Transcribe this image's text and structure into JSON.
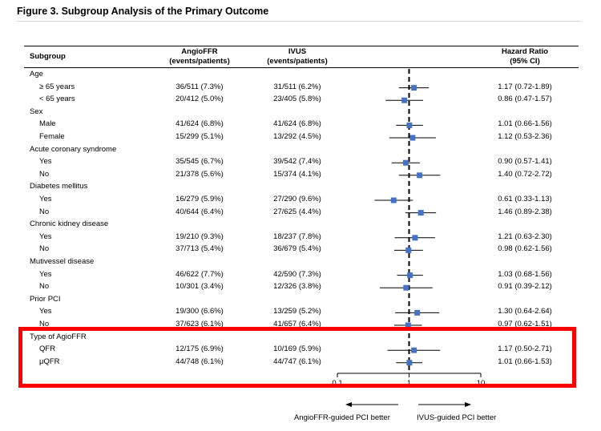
{
  "title": "Figure 3. Subgroup Analysis of the Primary Outcome",
  "headers": {
    "subgroup": "Subgroup",
    "angio_line1": "AngioFFR",
    "angio_line2": "(events/patients)",
    "ivus_line1": "IVUS",
    "ivus_line2": "(events/patients)",
    "hr_line1": "Hazard Ratio",
    "hr_line2": "(95% CI)"
  },
  "rows": [
    {
      "label": "Age",
      "kind": "group",
      "angio": "",
      "ivus": "",
      "ci": ""
    },
    {
      "label": "≥ 65 years",
      "kind": "sub",
      "angio": "36/511 (7.3%)",
      "ivus": "31/511 (6.2%)",
      "ci": "1.17 (0.72-1.89)"
    },
    {
      "label": "< 65 years",
      "kind": "sub",
      "angio": "20/412 (5.0%)",
      "ivus": "23/405 (5.8%)",
      "ci": "0.86 (0.47-1.57)"
    },
    {
      "label": "Sex",
      "kind": "group",
      "angio": "",
      "ivus": "",
      "ci": ""
    },
    {
      "label": "Male",
      "kind": "sub",
      "angio": "41/624 (6.8%)",
      "ivus": "41/624 (6.8%)",
      "ci": "1.01 (0.66-1.56)"
    },
    {
      "label": "Female",
      "kind": "sub",
      "angio": "15/299 (5.1%)",
      "ivus": "13/292 (4.5%)",
      "ci": "1.12 (0.53-2.36)"
    },
    {
      "label": "Acute coronary syndrome",
      "kind": "group",
      "angio": "",
      "ivus": "",
      "ci": ""
    },
    {
      "label": "Yes",
      "kind": "sub",
      "angio": "35/545 (6.7%)",
      "ivus": "39/542 (7.4%)",
      "ci": "0.90 (0.57-1.41)"
    },
    {
      "label": "No",
      "kind": "sub",
      "angio": "21/378 (5.6%)",
      "ivus": "15/374 (4.1%)",
      "ci": "1.40 (0.72-2.72)"
    },
    {
      "label": "Diabetes mellitus",
      "kind": "group",
      "angio": "",
      "ivus": "",
      "ci": ""
    },
    {
      "label": "Yes",
      "kind": "sub",
      "angio": "16/279 (5.9%)",
      "ivus": "27/290 (9.6%)",
      "ci": "0.61 (0.33-1.13)"
    },
    {
      "label": "No",
      "kind": "sub",
      "angio": "40/644 (6.4%)",
      "ivus": "27/625 (4.4%)",
      "ci": "1.46 (0.89-2.38)"
    },
    {
      "label": "Chronic kidney disease",
      "kind": "group",
      "angio": "",
      "ivus": "",
      "ci": ""
    },
    {
      "label": "Yes",
      "kind": "sub",
      "angio": "19/210 (9.3%)",
      "ivus": "18/237 (7.8%)",
      "ci": "1.21 (0.63-2.30)"
    },
    {
      "label": "No",
      "kind": "sub",
      "angio": "37/713 (5.4%)",
      "ivus": "36/679 (5.4%)",
      "ci": "0.98 (0.62-1.56)"
    },
    {
      "label": "Mutivessel disease",
      "kind": "group",
      "angio": "",
      "ivus": "",
      "ci": ""
    },
    {
      "label": "Yes",
      "kind": "sub",
      "angio": "46/622 (7.7%)",
      "ivus": "42/590 (7.3%)",
      "ci": "1.03 (0.68-1.56)"
    },
    {
      "label": "No",
      "kind": "sub",
      "angio": "10/301 (3.4%)",
      "ivus": "12/326 (3.8%)",
      "ci": "0.91 (0.39-2.12)"
    },
    {
      "label": "Prior PCI",
      "kind": "group",
      "angio": "",
      "ivus": "",
      "ci": ""
    },
    {
      "label": "Yes",
      "kind": "sub",
      "angio": "19/300 (6.6%)",
      "ivus": "13/259 (5.2%)",
      "ci": "1.30 (0.64-2.64)"
    },
    {
      "label": "No",
      "kind": "sub",
      "angio": "37/623 (6.1%)",
      "ivus": "41/657 (6.4%)",
      "ci": "0.97 (0.62-1.51)"
    },
    {
      "label": "Type of AgioFFR",
      "kind": "group",
      "angio": "",
      "ivus": "",
      "ci": ""
    },
    {
      "label": "QFR",
      "kind": "sub",
      "angio": "12/175 (6.9%)",
      "ivus": "10/169 (5.9%)",
      "ci": "1.17 (0.50-2.71)"
    },
    {
      "label": "μQFR",
      "kind": "sub",
      "angio": "44/748 (6.1%)",
      "ivus": "44/747 (6.1%)",
      "ci": "1.01 (0.66-1.53)"
    }
  ],
  "chart_data": {
    "type": "forest",
    "title": "Figure 3. Subgroup Analysis of the Primary Outcome",
    "xscale": "log",
    "xlim": [
      0.1,
      10
    ],
    "xticks": [
      "0.1",
      "1",
      "10"
    ],
    "reference_line": 1,
    "left_direction_label": "AngioFFR-guided PCI better",
    "right_direction_label": "IVUS-guided PCI better",
    "series": [
      {
        "row": 1,
        "hr": 1.17,
        "lo": 0.72,
        "hi": 1.89
      },
      {
        "row": 2,
        "hr": 0.86,
        "lo": 0.47,
        "hi": 1.57
      },
      {
        "row": 4,
        "hr": 1.01,
        "lo": 0.66,
        "hi": 1.56
      },
      {
        "row": 5,
        "hr": 1.12,
        "lo": 0.53,
        "hi": 2.36
      },
      {
        "row": 7,
        "hr": 0.9,
        "lo": 0.57,
        "hi": 1.41
      },
      {
        "row": 8,
        "hr": 1.4,
        "lo": 0.72,
        "hi": 2.72
      },
      {
        "row": 10,
        "hr": 0.61,
        "lo": 0.33,
        "hi": 1.13
      },
      {
        "row": 11,
        "hr": 1.46,
        "lo": 0.89,
        "hi": 2.38
      },
      {
        "row": 13,
        "hr": 1.21,
        "lo": 0.63,
        "hi": 2.3
      },
      {
        "row": 14,
        "hr": 0.98,
        "lo": 0.62,
        "hi": 1.56
      },
      {
        "row": 16,
        "hr": 1.03,
        "lo": 0.68,
        "hi": 1.56
      },
      {
        "row": 17,
        "hr": 0.91,
        "lo": 0.39,
        "hi": 2.12
      },
      {
        "row": 19,
        "hr": 1.3,
        "lo": 0.64,
        "hi": 2.64
      },
      {
        "row": 20,
        "hr": 0.97,
        "lo": 0.62,
        "hi": 1.51
      },
      {
        "row": 22,
        "hr": 1.17,
        "lo": 0.5,
        "hi": 2.71
      },
      {
        "row": 23,
        "hr": 1.01,
        "lo": 0.66,
        "hi": 1.53
      }
    ],
    "highlighted_group": "Type of AgioFFR",
    "colors": {
      "marker": "#4472c4",
      "highlight": "#ff0000"
    }
  }
}
